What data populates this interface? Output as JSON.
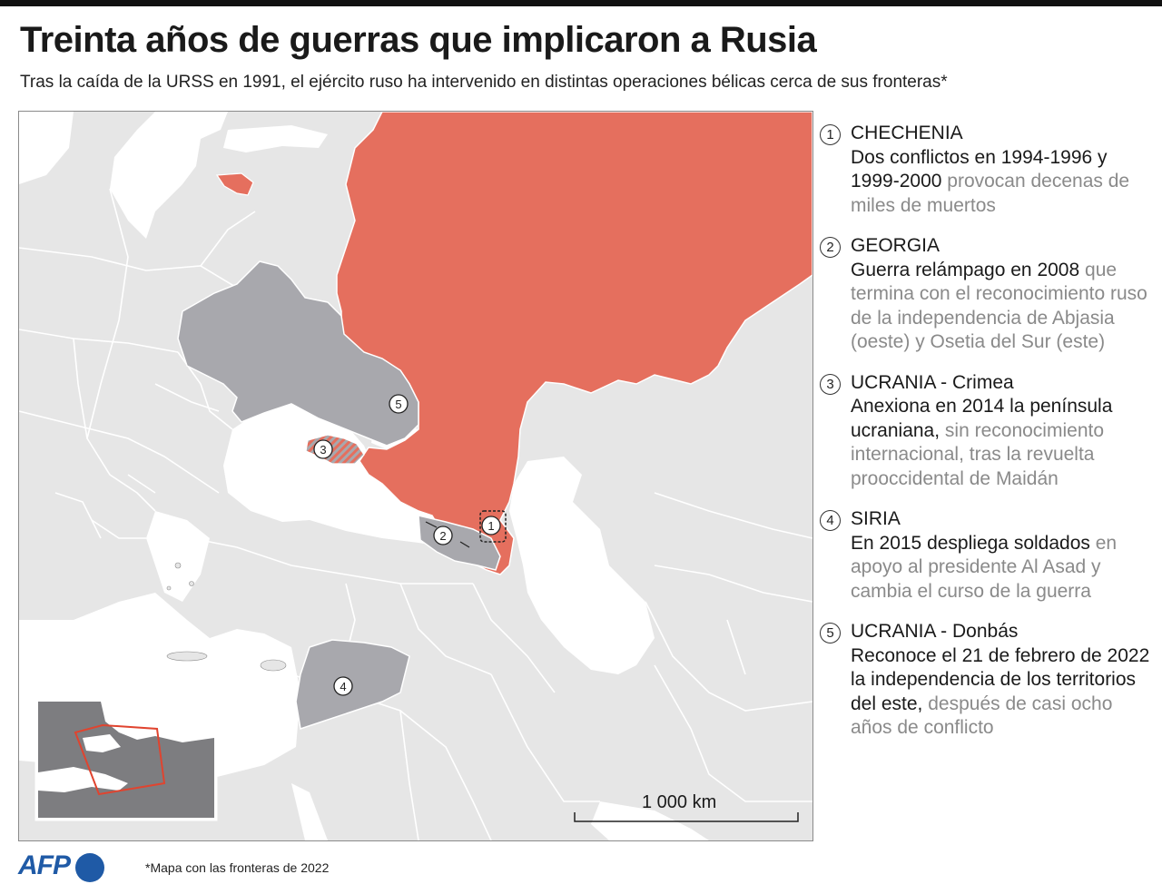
{
  "title": "Treinta años de guerras que implicaron a Rusia",
  "subtitle": "Tras la caída de la URSS en 1991, el ejército ruso ha intervenido en distintas operaciones bélicas cerca de sus fronteras*",
  "colors": {
    "russia": "#e56f5e",
    "conflict": "#a8a8ad",
    "land": "#e6e6e6",
    "water": "#ffffff",
    "border": "#ffffff"
  },
  "map": {
    "scale_label": "1 000 km",
    "markers": [
      "1",
      "2",
      "3",
      "4",
      "5"
    ]
  },
  "legend": [
    {
      "num": "1",
      "heading": "CHECHENIA",
      "bold": "Dos conflictos en 1994-1996 y 1999-2000",
      "light": "provocan decenas de miles de muertos"
    },
    {
      "num": "2",
      "heading": "GEORGIA",
      "bold": "Guerra relámpago en 2008",
      "light": "que termina con el reconocimiento ruso de la independencia de Abjasia (oeste) y Osetia del Sur (este)"
    },
    {
      "num": "3",
      "heading": "UCRANIA - Crimea",
      "bold": "Anexiona en 2014 la península ucraniana,",
      "light": "sin reconocimiento internacional, tras la revuelta prooccidental de Maidán"
    },
    {
      "num": "4",
      "heading": "SIRIA",
      "bold": "En 2015 despliega soldados",
      "light": "en apoyo al presidente Al Asad y cambia el curso de la guerra"
    },
    {
      "num": "5",
      "heading": "UCRANIA - Donbás",
      "bold": "Reconoce el 21 de febrero de 2022 la independencia de los territorios del este,",
      "light": "después de casi ocho años de conflicto"
    }
  ],
  "footnote_mark": "*",
  "footnote": "Mapa con las fronteras de 2022",
  "logo_text": "AFP"
}
